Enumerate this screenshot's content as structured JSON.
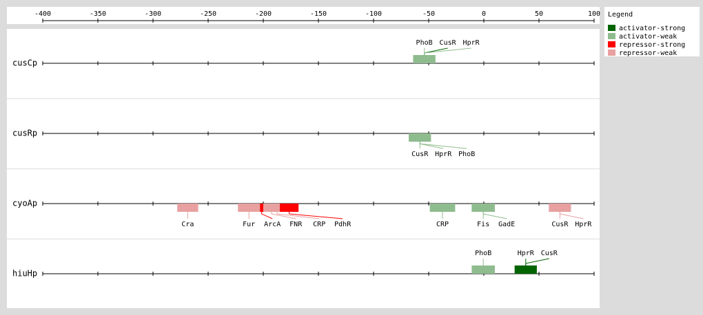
{
  "axis": {
    "xlim": [
      -400,
      100
    ],
    "xticks": [
      -400,
      -350,
      -300,
      -250,
      -200,
      -150,
      -100,
      -50,
      0,
      50,
      100
    ]
  },
  "legend": {
    "title": "Legend",
    "items": [
      {
        "label": "activator-strong",
        "color": "#006400"
      },
      {
        "label": "activator-weak",
        "color": "#8fbc8f"
      },
      {
        "label": "repressor-strong",
        "color": "#ff0000"
      },
      {
        "label": "repressor-weak",
        "color": "#e8a0a0"
      }
    ]
  },
  "promoters": [
    {
      "name": "cusCp",
      "label_side": "above",
      "sites": [
        {
          "name": "PhoB",
          "start": -64,
          "end": -44,
          "kind": 1
        },
        {
          "name": "CusR",
          "start": -64,
          "end": -44,
          "kind": 0
        },
        {
          "name": "HprR",
          "start": -64,
          "end": -44,
          "kind": 1
        }
      ]
    },
    {
      "name": "cusRp",
      "label_side": "below",
      "sites": [
        {
          "name": "CusR",
          "start": -68,
          "end": -48,
          "kind": 1
        },
        {
          "name": "HprR",
          "start": -68,
          "end": -48,
          "kind": 1
        },
        {
          "name": "PhoB",
          "start": -68,
          "end": -48,
          "kind": 1
        }
      ]
    },
    {
      "name": "cyoAp",
      "label_side": "below",
      "sites": [
        {
          "name": "Cra",
          "start": -278,
          "end": -259,
          "kind": 3
        },
        {
          "name": "Fur",
          "start": -223,
          "end": -203,
          "kind": 3
        },
        {
          "name": "ArcA",
          "start": -203,
          "end": -200,
          "kind": 2
        },
        {
          "name": "FNR",
          "start": -200,
          "end": -185,
          "kind": 3
        },
        {
          "name": "CRP",
          "start": -195,
          "end": -180,
          "kind": 3
        },
        {
          "name": "PdhR",
          "start": -185,
          "end": -168,
          "kind": 2
        },
        {
          "name": "CRP",
          "start": -49,
          "end": -26,
          "kind": 1
        },
        {
          "name": "Fis",
          "start": -11,
          "end": 10,
          "kind": 1
        },
        {
          "name": "GadE",
          "start": -11,
          "end": 10,
          "kind": 1
        },
        {
          "name": "CusR",
          "start": 59,
          "end": 79,
          "kind": 3
        },
        {
          "name": "HprR",
          "start": 59,
          "end": 79,
          "kind": 3
        }
      ]
    },
    {
      "name": "hiuHp",
      "label_side": "above",
      "sites": [
        {
          "name": "PhoB",
          "start": -11,
          "end": 10,
          "kind": 1
        },
        {
          "name": "HprR",
          "start": 28,
          "end": 48,
          "kind": 0
        },
        {
          "name": "CusR",
          "start": 28,
          "end": 48,
          "kind": 0
        }
      ]
    }
  ]
}
